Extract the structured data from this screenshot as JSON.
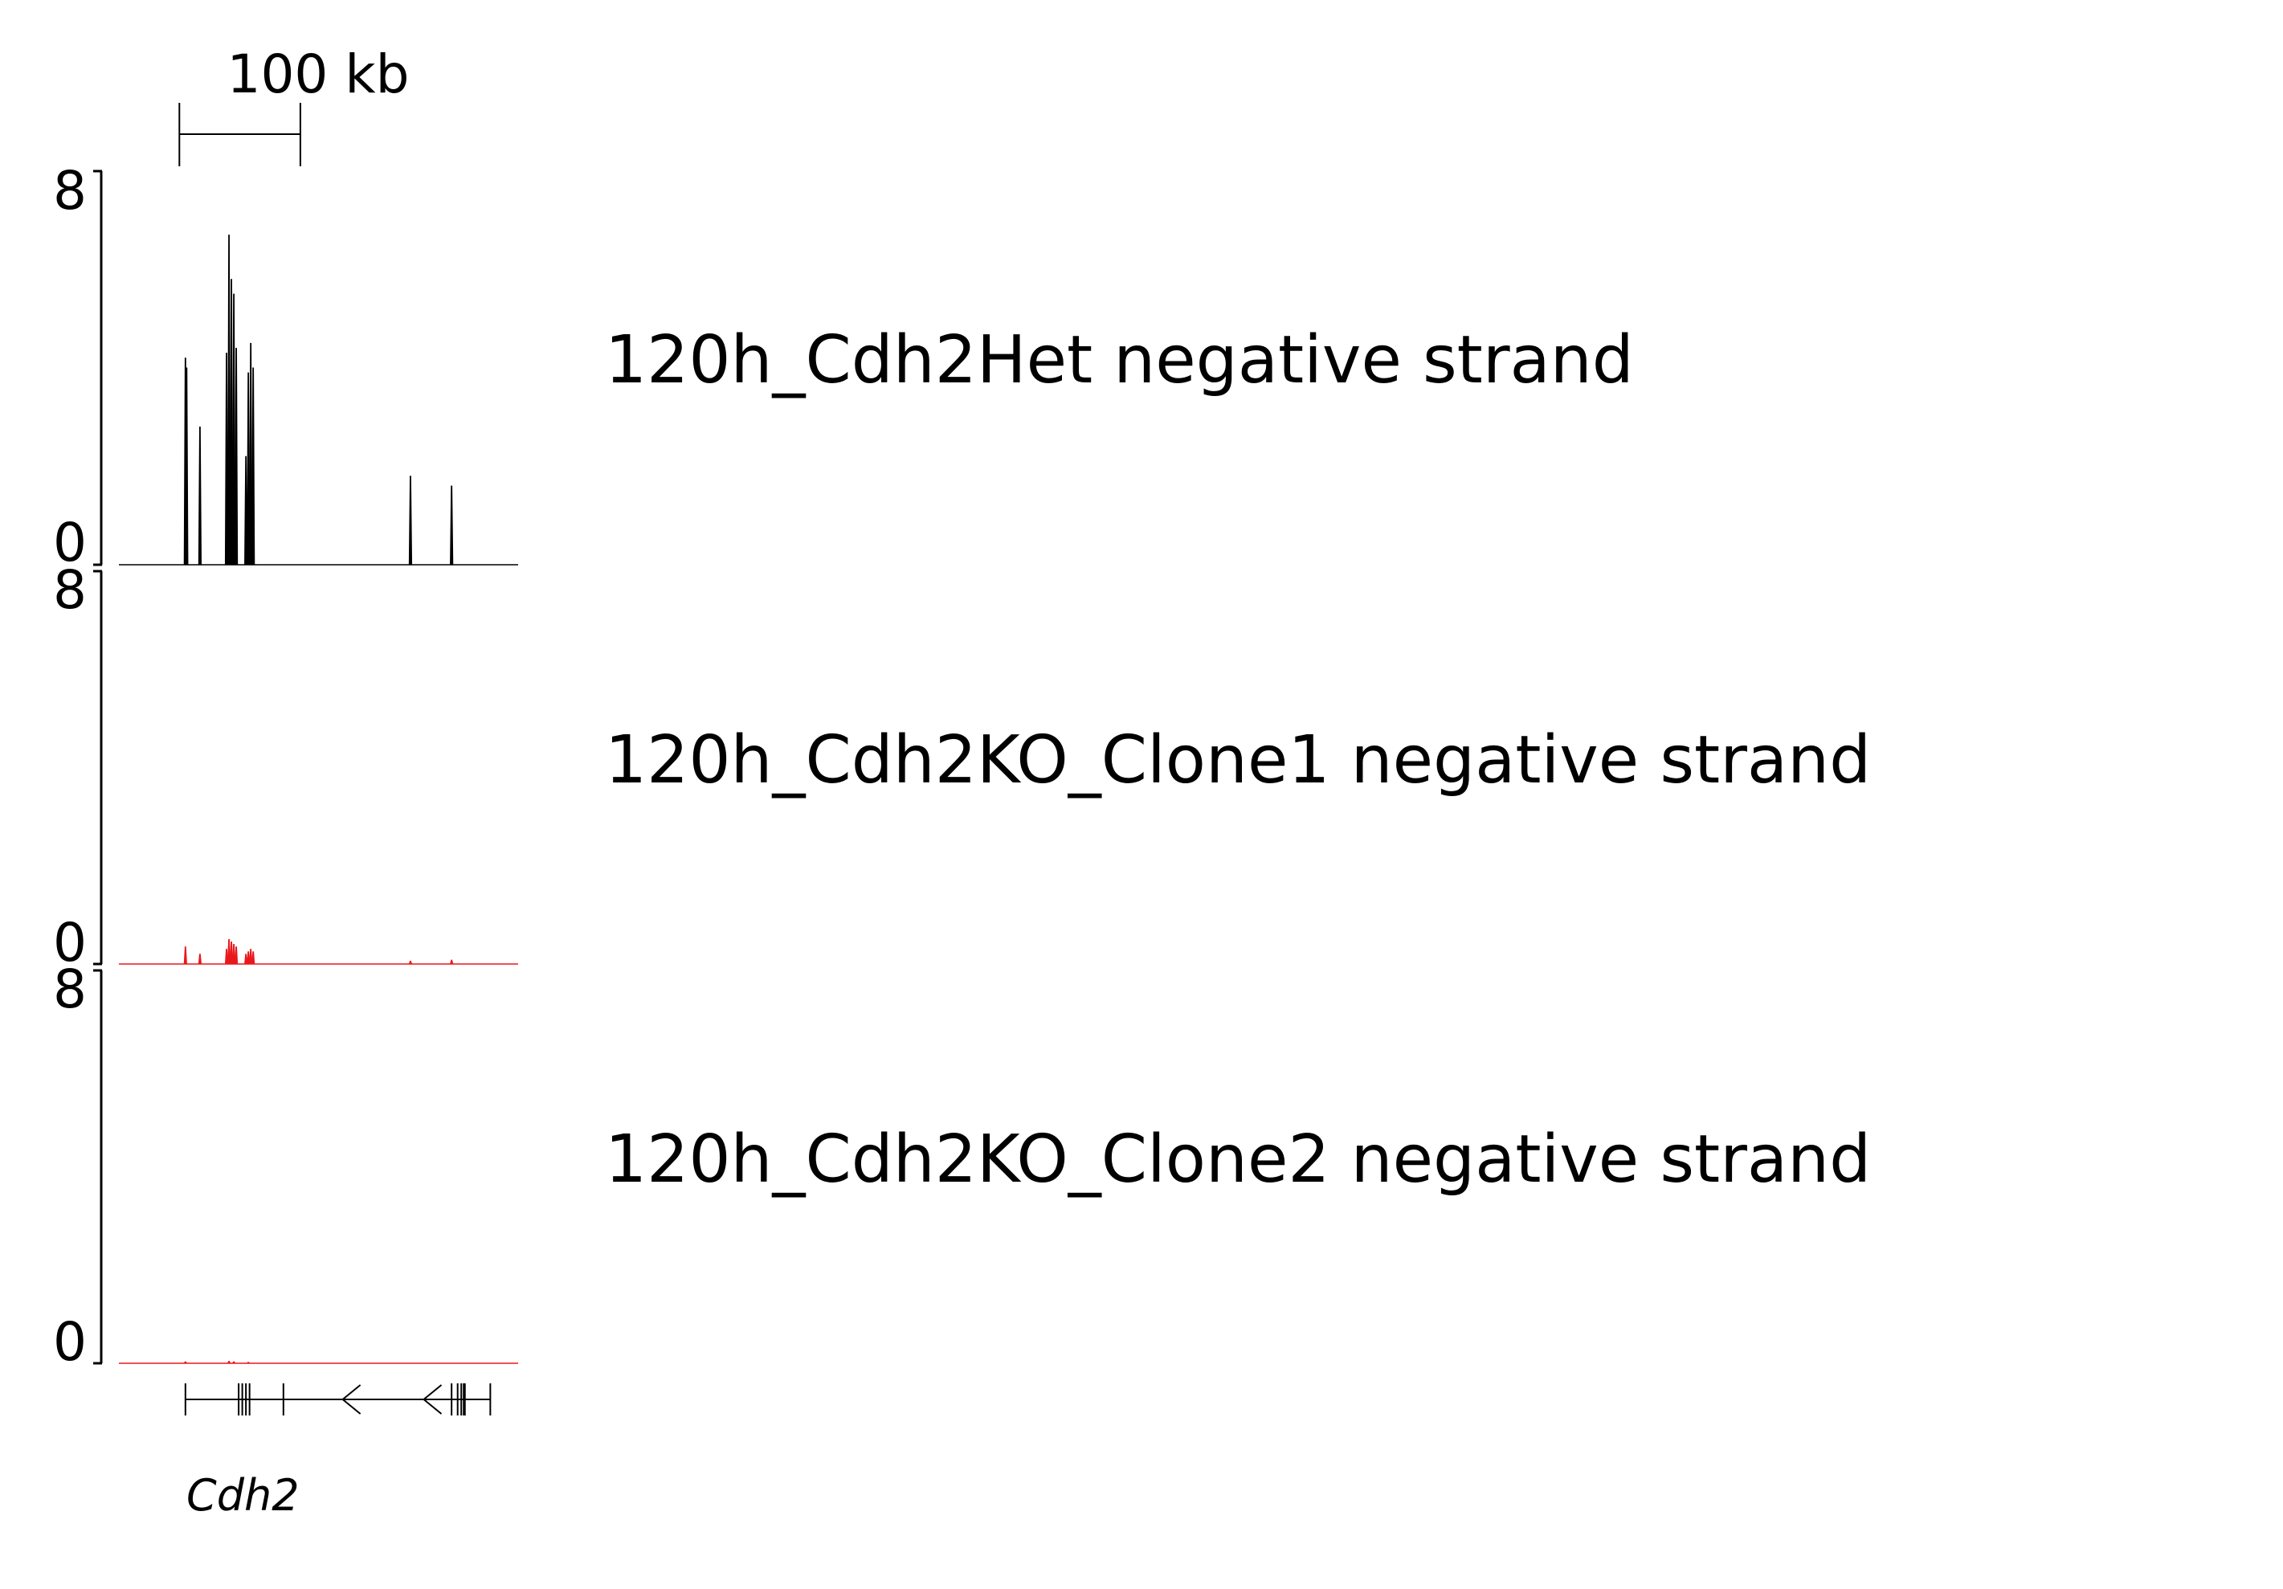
{
  "scale_bar": {
    "label": "100 kb",
    "length_kb": 100
  },
  "colors": {
    "het": "#000000",
    "ko": "#e8191c"
  },
  "chart_data": [
    {
      "type": "area",
      "name": "120h_Cdh2Het negative strand",
      "title": "120h_Cdh2Het negative strand",
      "color": "#000000",
      "ylim": [
        0,
        8
      ],
      "y_ticks": [
        "8",
        "0"
      ],
      "x_unit": "kb",
      "x_range": [
        0,
        330
      ],
      "peaks": [
        {
          "x": 55,
          "y": 4.2
        },
        {
          "x": 56,
          "y": 4.0
        },
        {
          "x": 67,
          "y": 2.8
        },
        {
          "x": 89,
          "y": 4.3
        },
        {
          "x": 91,
          "y": 6.7
        },
        {
          "x": 93,
          "y": 5.8
        },
        {
          "x": 95,
          "y": 5.5
        },
        {
          "x": 97,
          "y": 4.4
        },
        {
          "x": 105,
          "y": 2.2
        },
        {
          "x": 107,
          "y": 3.9
        },
        {
          "x": 109,
          "y": 4.5
        },
        {
          "x": 111,
          "y": 4.0
        },
        {
          "x": 241,
          "y": 1.8
        },
        {
          "x": 275,
          "y": 1.6
        }
      ]
    },
    {
      "type": "area",
      "name": "120h_Cdh2KO_Clone1 negative strand",
      "title": "120h_Cdh2KO_Clone1 negative strand",
      "color": "#e8191c",
      "ylim": [
        0,
        8
      ],
      "y_ticks": [
        "8",
        "0"
      ],
      "x_unit": "kb",
      "x_range": [
        0,
        330
      ],
      "peaks": [
        {
          "x": 55,
          "y": 0.35
        },
        {
          "x": 67,
          "y": 0.2
        },
        {
          "x": 89,
          "y": 0.3
        },
        {
          "x": 91,
          "y": 0.5
        },
        {
          "x": 93,
          "y": 0.45
        },
        {
          "x": 95,
          "y": 0.4
        },
        {
          "x": 97,
          "y": 0.35
        },
        {
          "x": 105,
          "y": 0.2
        },
        {
          "x": 107,
          "y": 0.25
        },
        {
          "x": 109,
          "y": 0.3
        },
        {
          "x": 111,
          "y": 0.25
        },
        {
          "x": 241,
          "y": 0.06
        },
        {
          "x": 275,
          "y": 0.08
        }
      ]
    },
    {
      "type": "area",
      "name": "120h_Cdh2KO_Clone2 negative strand",
      "title": "120h_Cdh2KO_Clone2 negative strand",
      "color": "#e8191c",
      "ylim": [
        0,
        8
      ],
      "y_ticks": [
        "8",
        "0"
      ],
      "x_unit": "kb",
      "x_range": [
        0,
        330
      ],
      "peaks": [
        {
          "x": 55,
          "y": 0.03
        },
        {
          "x": 91,
          "y": 0.04
        },
        {
          "x": 95,
          "y": 0.03
        },
        {
          "x": 107,
          "y": 0.02
        }
      ]
    }
  ],
  "gene": {
    "name": "Cdh2",
    "start_kb": 55,
    "end_kb": 307,
    "exons_kb": [
      55,
      99,
      102,
      105,
      108,
      136,
      275,
      280,
      283,
      285,
      286,
      307
    ],
    "strand_arrows_kb": [
      185,
      252
    ]
  }
}
